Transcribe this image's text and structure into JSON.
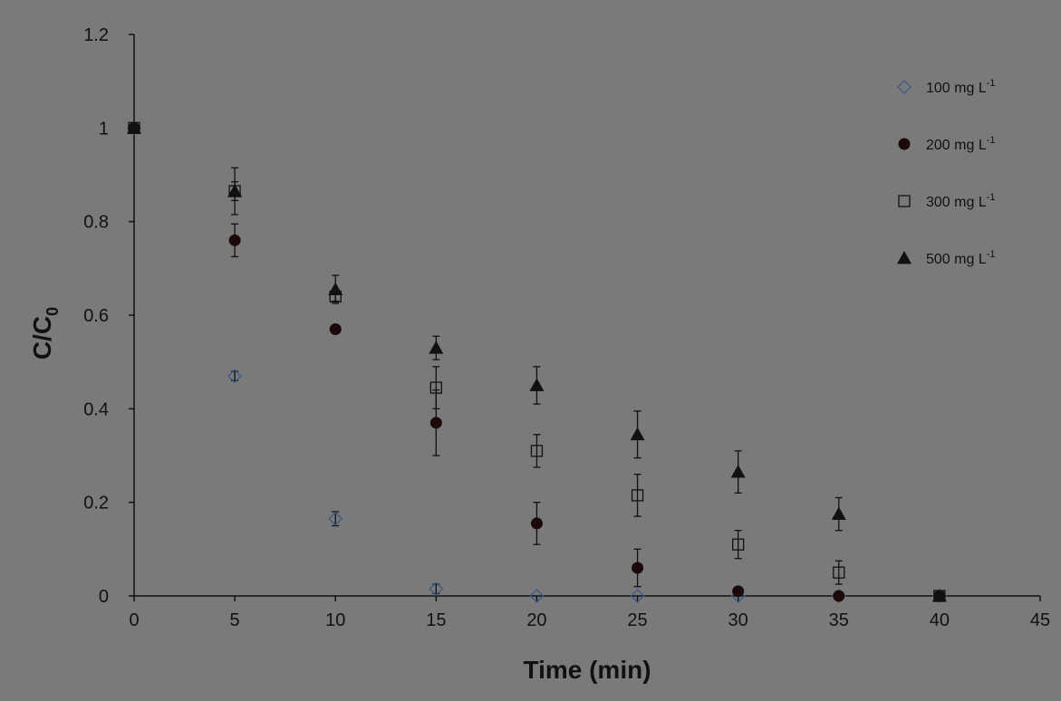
{
  "chart_data": {
    "type": "scatter",
    "xlabel": "Time (min)",
    "ylabel": {
      "main": "C/C",
      "sub": "0"
    },
    "xlim": [
      0,
      45
    ],
    "ylim": [
      0,
      1.2
    ],
    "xticks": [
      "0",
      "5",
      "10",
      "15",
      "20",
      "25",
      "30",
      "35",
      "40",
      "45"
    ],
    "yticks": [
      "0",
      "0.2",
      "0.4",
      "0.6",
      "0.8",
      "1",
      "1.2"
    ],
    "grid": false,
    "legend_position": "top-right",
    "series": [
      {
        "name": "100 mg L",
        "name_sup": "-1",
        "marker": "diamond-open",
        "points": [
          {
            "x": 0,
            "y": 1.0,
            "err": 0.0
          },
          {
            "x": 5,
            "y": 0.47,
            "err": 0.01
          },
          {
            "x": 10,
            "y": 0.165,
            "err": 0.015
          },
          {
            "x": 15,
            "y": 0.015,
            "err": 0.01
          },
          {
            "x": 20,
            "y": 0.0,
            "err": 0.0
          },
          {
            "x": 25,
            "y": 0.0,
            "err": 0.0
          },
          {
            "x": 30,
            "y": 0.0,
            "err": 0.0
          },
          {
            "x": 35,
            "y": 0.0,
            "err": 0.0
          },
          {
            "x": 40,
            "y": 0.0,
            "err": 0.0
          }
        ]
      },
      {
        "name": "200 mg L",
        "name_sup": "-1",
        "marker": "circle-filled",
        "points": [
          {
            "x": 0,
            "y": 1.0,
            "err": 0.0
          },
          {
            "x": 5,
            "y": 0.76,
            "err": 0.035
          },
          {
            "x": 10,
            "y": 0.57,
            "err": 0.0
          },
          {
            "x": 15,
            "y": 0.37,
            "err": 0.07
          },
          {
            "x": 20,
            "y": 0.155,
            "err": 0.045
          },
          {
            "x": 25,
            "y": 0.06,
            "err": 0.04
          },
          {
            "x": 30,
            "y": 0.01,
            "err": 0.0
          },
          {
            "x": 35,
            "y": 0.0,
            "err": 0.0
          },
          {
            "x": 40,
            "y": 0.0,
            "err": 0.0
          }
        ]
      },
      {
        "name": "300 mg L",
        "name_sup": "-1",
        "marker": "square-open",
        "points": [
          {
            "x": 0,
            "y": 1.0,
            "err": 0.0
          },
          {
            "x": 5,
            "y": 0.865,
            "err": 0.02
          },
          {
            "x": 10,
            "y": 0.64,
            "err": 0.01
          },
          {
            "x": 15,
            "y": 0.445,
            "err": 0.045
          },
          {
            "x": 20,
            "y": 0.31,
            "err": 0.035
          },
          {
            "x": 25,
            "y": 0.215,
            "err": 0.045
          },
          {
            "x": 30,
            "y": 0.11,
            "err": 0.03
          },
          {
            "x": 35,
            "y": 0.05,
            "err": 0.025
          },
          {
            "x": 40,
            "y": 0.0,
            "err": 0.0
          }
        ]
      },
      {
        "name": "500 mg L",
        "name_sup": "-1",
        "marker": "triangle-filled",
        "points": [
          {
            "x": 0,
            "y": 1.0,
            "err": 0.0
          },
          {
            "x": 5,
            "y": 0.865,
            "err": 0.05
          },
          {
            "x": 10,
            "y": 0.655,
            "err": 0.03
          },
          {
            "x": 15,
            "y": 0.53,
            "err": 0.025
          },
          {
            "x": 20,
            "y": 0.45,
            "err": 0.04
          },
          {
            "x": 25,
            "y": 0.345,
            "err": 0.05
          },
          {
            "x": 30,
            "y": 0.265,
            "err": 0.045
          },
          {
            "x": 35,
            "y": 0.175,
            "err": 0.035
          },
          {
            "x": 40,
            "y": 0.0,
            "err": 0.0
          }
        ]
      }
    ]
  }
}
